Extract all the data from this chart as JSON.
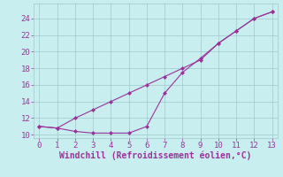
{
  "line1_x": [
    0,
    1,
    2,
    3,
    4,
    5,
    6,
    7,
    8,
    9,
    10,
    11,
    12,
    13
  ],
  "line1_y": [
    11.0,
    10.8,
    12.0,
    13.0,
    14.0,
    15.0,
    16.0,
    17.0,
    18.0,
    19.0,
    21.0,
    22.5,
    24.0,
    24.8
  ],
  "line2_x": [
    0,
    1,
    2,
    3,
    4,
    5,
    6,
    7,
    8,
    9,
    10,
    11,
    12,
    13
  ],
  "line2_y": [
    11.0,
    10.8,
    10.4,
    10.2,
    10.2,
    10.2,
    11.0,
    15.0,
    17.5,
    19.2,
    21.0,
    22.5,
    24.0,
    24.8
  ],
  "line_color": "#993399",
  "marker": "D",
  "markersize": 2.0,
  "linewidth": 0.8,
  "xlabel": "Windchill (Refroidissement éolien,°C)",
  "xlim": [
    -0.3,
    13.3
  ],
  "ylim": [
    9.6,
    25.8
  ],
  "xticks": [
    0,
    1,
    2,
    3,
    4,
    5,
    6,
    7,
    8,
    9,
    10,
    11,
    12,
    13
  ],
  "yticks": [
    10,
    12,
    14,
    16,
    18,
    20,
    22,
    24
  ],
  "bg_color": "#c8eef0",
  "grid_color": "#a0c8cc",
  "tick_color": "#993399",
  "label_color": "#993399",
  "tick_fontsize": 6.5,
  "xlabel_fontsize": 7.0
}
